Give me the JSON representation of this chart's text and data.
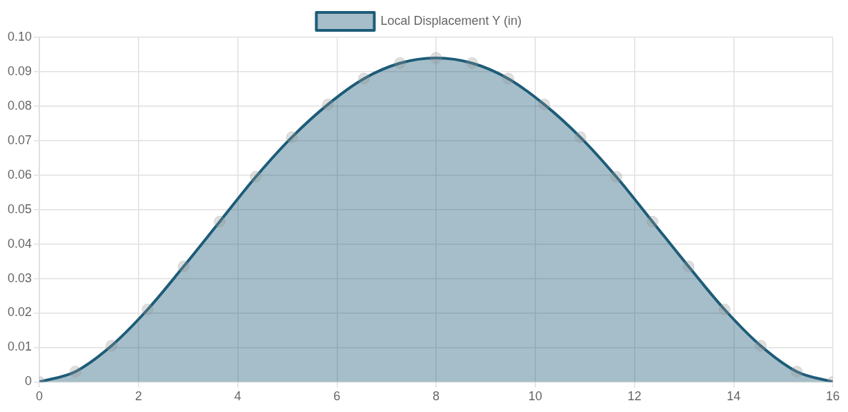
{
  "chart_data": {
    "type": "area",
    "x": [
      0,
      0.727,
      1.455,
      2.182,
      2.909,
      3.636,
      4.364,
      5.091,
      5.818,
      6.545,
      7.273,
      8,
      8.727,
      9.455,
      10.182,
      10.909,
      11.636,
      12.364,
      13.091,
      13.818,
      14.545,
      15.273,
      16
    ],
    "series": [
      {
        "name": "Local Displacement Y (in)",
        "color": "#1d5c78",
        "values": [
          0,
          0.003,
          0.0105,
          0.021,
          0.0335,
          0.0465,
          0.0595,
          0.071,
          0.0805,
          0.088,
          0.0925,
          0.094,
          0.0925,
          0.088,
          0.0805,
          0.071,
          0.0595,
          0.0465,
          0.0335,
          0.021,
          0.0105,
          0.003,
          0
        ]
      }
    ],
    "xlim": [
      0,
      16
    ],
    "xticks": [
      0,
      2,
      4,
      6,
      8,
      10,
      12,
      14,
      16
    ],
    "ylim": [
      0,
      0.1
    ],
    "yticks": [
      0,
      0.01,
      0.02,
      0.03,
      0.04,
      0.05,
      0.06,
      0.07,
      0.08,
      0.09,
      {
        "value": 0.1,
        "label": "0.10"
      }
    ],
    "grid": true,
    "legend": "top",
    "marker": "circle",
    "line_style": "solid"
  }
}
